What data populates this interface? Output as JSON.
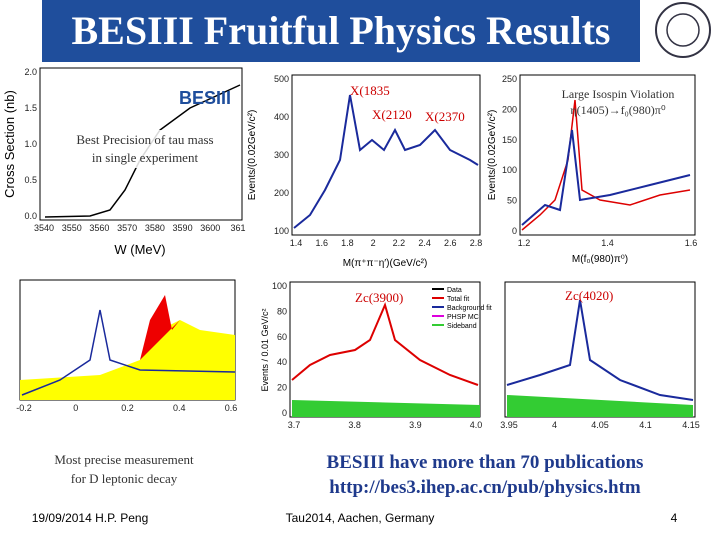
{
  "header": {
    "title": "BESIII Fruitful Physics Results"
  },
  "panels": [
    {
      "legend": "BESIII",
      "note": [
        "Best Precision of tau mass",
        "in single experiment"
      ],
      "y_label": "Cross Section (nb)",
      "x_label": "W (MeV)",
      "yticks": [
        "2.0",
        "1.5",
        "1.0",
        "0.5",
        "0.0"
      ],
      "xticks": [
        "3540",
        "3550",
        "3560",
        "3570",
        "3580",
        "3590",
        "3600",
        "361"
      ]
    },
    {
      "annotations": [
        "X(1835",
        "X(2120",
        "X(2370"
      ],
      "y_label": "Events/(0.02GeV/c²)",
      "x_label": "M(π⁺π⁻η′)(GeV/c²)",
      "yticks": [
        "500",
        "400",
        "300",
        "200",
        "100"
      ],
      "xticks": [
        "1.4",
        "1.6",
        "1.8",
        "2",
        "2.2",
        "2.4",
        "2.6",
        "2.8"
      ]
    },
    {
      "annotations": [
        "Large Isospin Violation",
        "η(1405)→f₀(980)π⁰"
      ],
      "y_label": "Events/(0.02GeV/c²)",
      "x_label": "M(f₀(980)π⁰)",
      "yticks": [
        "250",
        "200",
        "150",
        "100",
        "50",
        "0"
      ],
      "xticks": [
        "1.2",
        "1.4",
        "1.6"
      ]
    },
    {
      "caption": [
        "Most precise measurement",
        "for D leptonic decay"
      ],
      "xticks": [
        "-0.2",
        "0",
        "0.2",
        "0.4",
        "0.6"
      ]
    },
    {
      "annotations": [
        "Zc(3900)"
      ],
      "legend": [
        "Data",
        "Total fit",
        "Background fit",
        "PHSP MC",
        "Sideband"
      ],
      "y_label": "Events / 0.01 GeV/c²",
      "yticks": [
        "100",
        "80",
        "60",
        "40",
        "20",
        "0"
      ],
      "xticks": [
        "3.7",
        "3.8",
        "3.9",
        "4.0"
      ]
    },
    {
      "annotations": [
        "Zc(4020)"
      ],
      "xticks": [
        "3.95",
        "4",
        "4.05",
        "4.1",
        "4.15"
      ]
    }
  ],
  "publications": [
    "BESIII have more than 70 publications",
    "http://bes3.ihep.ac.cn/pub/physics.htm"
  ],
  "footer": {
    "date_author": "19/09/2014 H.P. Peng",
    "event": "Tau2014, Aachen, Germany",
    "page": "4"
  }
}
